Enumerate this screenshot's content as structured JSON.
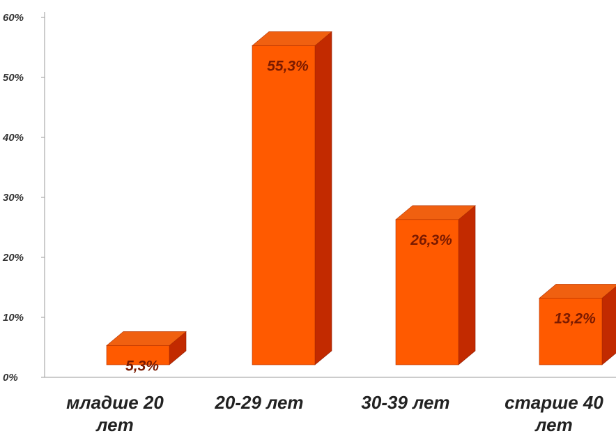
{
  "colors": {
    "bar_front": "#ff5a00",
    "bar_top": "#f06010",
    "bar_side": "#c22a00",
    "axis": "#9a9a9a",
    "value_label": "#7a1a00"
  },
  "chart_data": {
    "type": "bar",
    "style": "3d-column",
    "categories": [
      [
        "младше 20",
        "лет"
      ],
      [
        "20-29 лет"
      ],
      [
        "30-39 лет"
      ],
      [
        "старше 40",
        "лет"
      ]
    ],
    "values": [
      5.3,
      55.3,
      26.3,
      13.2
    ],
    "value_labels": [
      "5,3%",
      "55,3%",
      "26,3%",
      "13,2%"
    ],
    "title": "",
    "xlabel": "",
    "ylabel": "",
    "ylim": [
      0,
      60
    ],
    "y_ticks": [
      0,
      10,
      20,
      30,
      40,
      50,
      60
    ],
    "y_tick_labels": [
      "0%",
      "10%",
      "20%",
      "30%",
      "40%",
      "50%",
      "60%"
    ],
    "grid": false,
    "legend": "none"
  }
}
